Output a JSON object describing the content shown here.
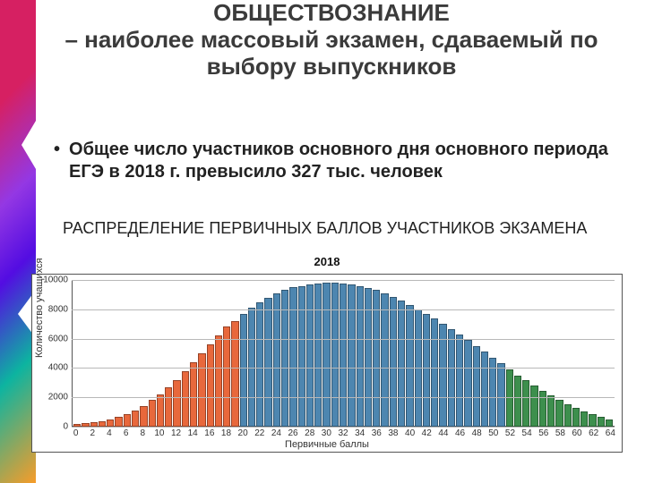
{
  "title": {
    "line1": "ОБЩЕСТВОЗНАНИЕ",
    "rest": "– наиболее массовый экзамен, сдаваемый по выбору выпускников",
    "fontsize": 26,
    "color": "#3b3b3b"
  },
  "bullet": {
    "text": "Общее число участников основного дня основного периода ЕГЭ в 2018 г. превысило 327 тыс. человек",
    "fontsize": 20
  },
  "subhead": {
    "text": "РАСПРЕДЕЛЕНИЕ  ПЕРВИЧНЫХ БАЛЛОВ УЧАСТНИКОВ ЭКЗАМЕНА",
    "fontsize": 18
  },
  "chart": {
    "type": "bar",
    "title": "2018",
    "title_fontsize": 13,
    "x_label": "Первичные баллы",
    "y_label": "Количество учащихся",
    "label_fontsize": 11,
    "tick_fontsize": 10,
    "background_color": "#ffffff",
    "border_color": "#555555",
    "grid_color": "#b8b8b8",
    "ylim": [
      0,
      10000
    ],
    "ytick_step": 2000,
    "x_tick_step": 2,
    "bar_border_color": "rgba(0,0,0,0.35)",
    "colors": {
      "orange": "#e8683c",
      "blue": "#4d86b0",
      "green": "#3d8f4d"
    },
    "bars": [
      {
        "x": 0,
        "y": 160,
        "c": "orange"
      },
      {
        "x": 1,
        "y": 220,
        "c": "orange"
      },
      {
        "x": 2,
        "y": 300,
        "c": "orange"
      },
      {
        "x": 3,
        "y": 380,
        "c": "orange"
      },
      {
        "x": 4,
        "y": 500,
        "c": "orange"
      },
      {
        "x": 5,
        "y": 650,
        "c": "orange"
      },
      {
        "x": 6,
        "y": 850,
        "c": "orange"
      },
      {
        "x": 7,
        "y": 1100,
        "c": "orange"
      },
      {
        "x": 8,
        "y": 1400,
        "c": "orange"
      },
      {
        "x": 9,
        "y": 1800,
        "c": "orange"
      },
      {
        "x": 10,
        "y": 2200,
        "c": "orange"
      },
      {
        "x": 11,
        "y": 2700,
        "c": "orange"
      },
      {
        "x": 12,
        "y": 3200,
        "c": "orange"
      },
      {
        "x": 13,
        "y": 3800,
        "c": "orange"
      },
      {
        "x": 14,
        "y": 4400,
        "c": "orange"
      },
      {
        "x": 15,
        "y": 5000,
        "c": "orange"
      },
      {
        "x": 16,
        "y": 5600,
        "c": "orange"
      },
      {
        "x": 17,
        "y": 6200,
        "c": "orange"
      },
      {
        "x": 18,
        "y": 6800,
        "c": "orange"
      },
      {
        "x": 19,
        "y": 7200,
        "c": "orange"
      },
      {
        "x": 20,
        "y": 7700,
        "c": "blue"
      },
      {
        "x": 21,
        "y": 8100,
        "c": "blue"
      },
      {
        "x": 22,
        "y": 8500,
        "c": "blue"
      },
      {
        "x": 23,
        "y": 8800,
        "c": "blue"
      },
      {
        "x": 24,
        "y": 9100,
        "c": "blue"
      },
      {
        "x": 25,
        "y": 9300,
        "c": "blue"
      },
      {
        "x": 26,
        "y": 9500,
        "c": "blue"
      },
      {
        "x": 27,
        "y": 9600,
        "c": "blue"
      },
      {
        "x": 28,
        "y": 9700,
        "c": "blue"
      },
      {
        "x": 29,
        "y": 9750,
        "c": "blue"
      },
      {
        "x": 30,
        "y": 9800,
        "c": "blue"
      },
      {
        "x": 31,
        "y": 9800,
        "c": "blue"
      },
      {
        "x": 32,
        "y": 9750,
        "c": "blue"
      },
      {
        "x": 33,
        "y": 9700,
        "c": "blue"
      },
      {
        "x": 34,
        "y": 9600,
        "c": "blue"
      },
      {
        "x": 35,
        "y": 9450,
        "c": "blue"
      },
      {
        "x": 36,
        "y": 9300,
        "c": "blue"
      },
      {
        "x": 37,
        "y": 9100,
        "c": "blue"
      },
      {
        "x": 38,
        "y": 8850,
        "c": "blue"
      },
      {
        "x": 39,
        "y": 8600,
        "c": "blue"
      },
      {
        "x": 40,
        "y": 8300,
        "c": "blue"
      },
      {
        "x": 41,
        "y": 8000,
        "c": "blue"
      },
      {
        "x": 42,
        "y": 7700,
        "c": "blue"
      },
      {
        "x": 43,
        "y": 7350,
        "c": "blue"
      },
      {
        "x": 44,
        "y": 7000,
        "c": "blue"
      },
      {
        "x": 45,
        "y": 6650,
        "c": "blue"
      },
      {
        "x": 46,
        "y": 6300,
        "c": "blue"
      },
      {
        "x": 47,
        "y": 5900,
        "c": "blue"
      },
      {
        "x": 48,
        "y": 5500,
        "c": "blue"
      },
      {
        "x": 49,
        "y": 5100,
        "c": "blue"
      },
      {
        "x": 50,
        "y": 4700,
        "c": "blue"
      },
      {
        "x": 51,
        "y": 4300,
        "c": "blue"
      },
      {
        "x": 52,
        "y": 3900,
        "c": "green"
      },
      {
        "x": 53,
        "y": 3500,
        "c": "green"
      },
      {
        "x": 54,
        "y": 3150,
        "c": "green"
      },
      {
        "x": 55,
        "y": 2800,
        "c": "green"
      },
      {
        "x": 56,
        "y": 2450,
        "c": "green"
      },
      {
        "x": 57,
        "y": 2150,
        "c": "green"
      },
      {
        "x": 58,
        "y": 1850,
        "c": "green"
      },
      {
        "x": 59,
        "y": 1550,
        "c": "green"
      },
      {
        "x": 60,
        "y": 1300,
        "c": "green"
      },
      {
        "x": 61,
        "y": 1050,
        "c": "green"
      },
      {
        "x": 62,
        "y": 850,
        "c": "green"
      },
      {
        "x": 63,
        "y": 650,
        "c": "green"
      },
      {
        "x": 64,
        "y": 500,
        "c": "green"
      }
    ]
  }
}
